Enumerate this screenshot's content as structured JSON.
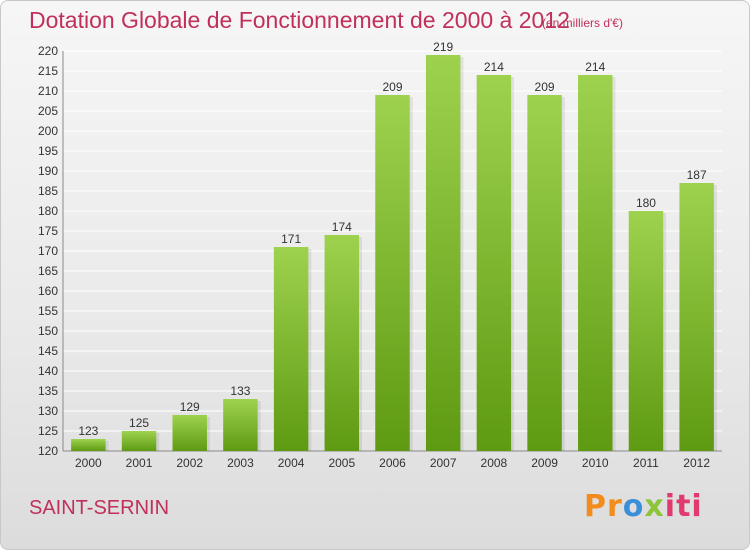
{
  "title": "Dotation Globale de Fonctionnement de 2000 à 2012",
  "subtitle": "(en milliers d'€)",
  "commune": "SAINT-SERNIN",
  "logo": {
    "text": "Proxiti",
    "parts": [
      "Pr",
      "o",
      "x",
      "iti"
    ],
    "colors": [
      "#f28c1c",
      "#3b8fd8",
      "#8cc43a",
      "#e03a6e"
    ]
  },
  "colors": {
    "title": "#c0305a",
    "bar_light": "#9ed24e",
    "bar_dark": "#5e9a12",
    "grid": "#ffffff"
  },
  "chart_data": {
    "type": "bar",
    "title": "Dotation Globale de Fonctionnement de 2000 à 2012",
    "subtitle": "(en milliers d'€)",
    "xlabel": "",
    "ylabel": "",
    "categories": [
      "2000",
      "2001",
      "2002",
      "2003",
      "2004",
      "2005",
      "2006",
      "2007",
      "2008",
      "2009",
      "2010",
      "2011",
      "2012"
    ],
    "values": [
      123,
      125,
      129,
      133,
      171,
      174,
      209,
      219,
      214,
      209,
      214,
      180,
      187
    ],
    "ylim": [
      120,
      220
    ],
    "ytick_step": 5,
    "grid": true,
    "legend": "none"
  }
}
